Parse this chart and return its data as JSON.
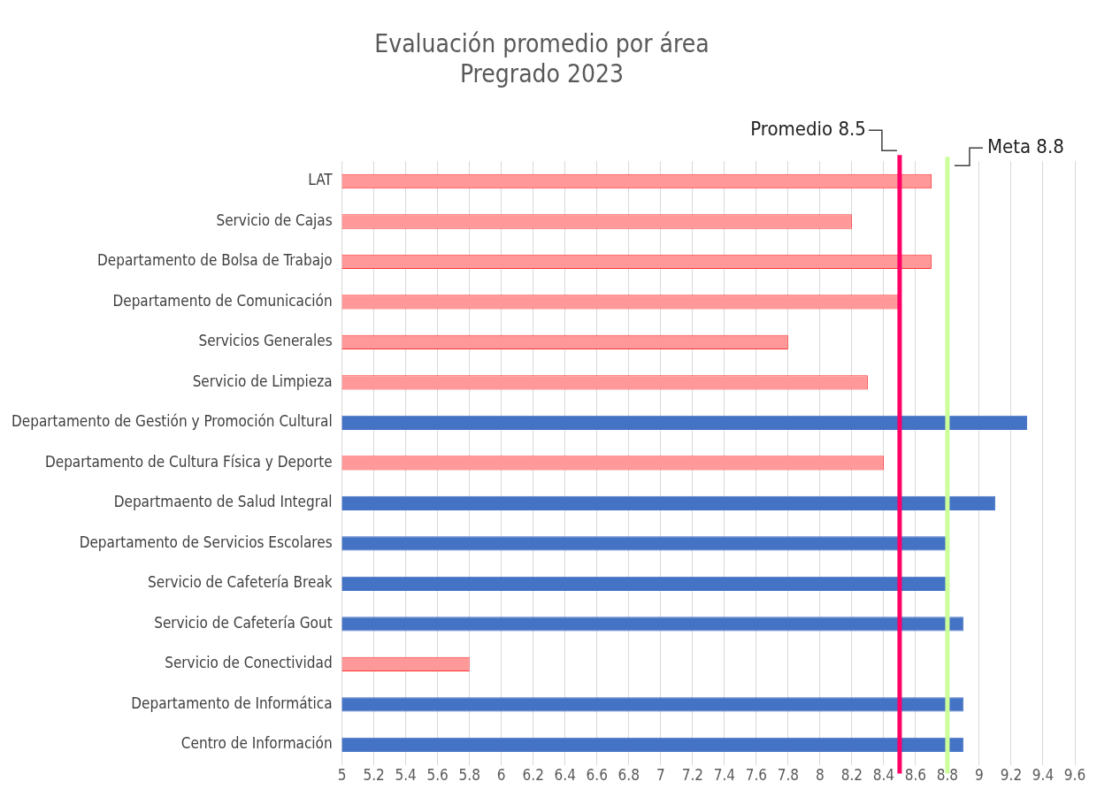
{
  "chart_data": {
    "type": "bar",
    "orientation": "horizontal",
    "title": [
      "Evaluación promedio por área",
      "Pregrado 2023"
    ],
    "categories": [
      "LAT",
      "Servicio de Cajas",
      "Departamento de Bolsa de Trabajo",
      "Departamento de Comunicación",
      "Servicios Generales",
      "Servicio de Limpieza",
      "Departamento de Gestión y Promoción Cultural",
      "Departamento de Cultura Física y Deporte",
      "Departmaento de Salud Integral",
      "Departamento de Servicios Escolares",
      "Servicio de Cafetería Break",
      "Servicio de Cafetería Gout",
      "Servicio de Conectividad",
      "Departamento de Informática",
      "Centro de Información"
    ],
    "values": [
      8.7,
      8.2,
      8.7,
      8.5,
      7.8,
      8.3,
      9.3,
      8.4,
      9.1,
      8.8,
      8.8,
      8.9,
      5.8,
      8.9,
      8.9
    ],
    "colors": [
      "#ff9999",
      "#ff9999",
      "#ff9999",
      "#ff9999",
      "#ff9999",
      "#ff9999",
      "#4472c4",
      "#ff9999",
      "#4472c4",
      "#4472c4",
      "#4472c4",
      "#4472c4",
      "#ff9999",
      "#4472c4",
      "#4472c4"
    ],
    "xlim": [
      5,
      9.6
    ],
    "xticks": [
      5,
      5.2,
      5.4,
      5.6,
      5.8,
      6,
      6.2,
      6.4,
      6.6,
      6.8,
      7,
      7.2,
      7.4,
      7.6,
      7.8,
      8,
      8.2,
      8.4,
      8.6,
      8.8,
      9,
      9.2,
      9.4,
      9.6
    ],
    "grid": "x",
    "legend": false,
    "ref_lines": [
      {
        "axis": "x",
        "value": 8.5,
        "label": "Promedio 8.5",
        "color": "#ff0066"
      },
      {
        "axis": "x",
        "value": 8.8,
        "label": "Meta 8.8",
        "color": "#ccff99"
      }
    ]
  }
}
